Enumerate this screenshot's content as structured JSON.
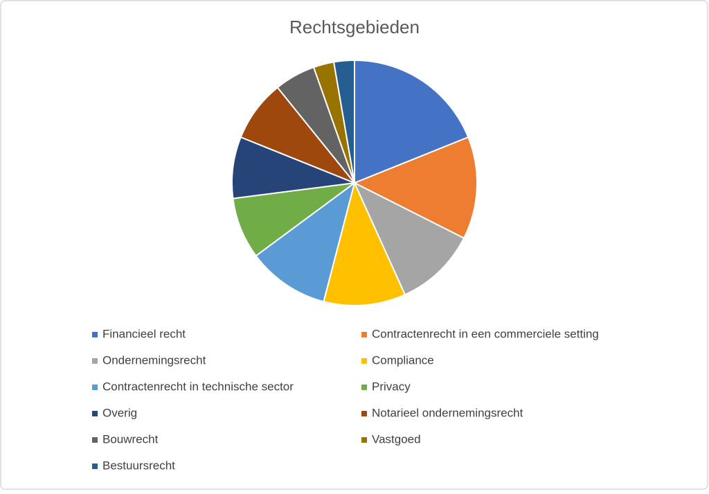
{
  "chart_data": {
    "type": "pie",
    "title": "Rechtsgebieden",
    "categories": [
      "Financieel recht",
      "Contractenrecht in een commerciele setting",
      "Ondernemingsrecht",
      "Compliance",
      "Contractenrecht in technische sector",
      "Privacy",
      "Overig",
      "Notarieel ondernemingsrecht",
      "Bouwrecht",
      "Vastgoed",
      "Bestuursrecht"
    ],
    "values": [
      7,
      5,
      4,
      4,
      4,
      3,
      3,
      3,
      2,
      1,
      1
    ],
    "colors": [
      "#4472c4",
      "#ed7d31",
      "#a5a5a5",
      "#ffc000",
      "#5b9bd5",
      "#70ad47",
      "#264478",
      "#9e480e",
      "#636363",
      "#997300",
      "#255e91"
    ],
    "legend": "bottom"
  }
}
